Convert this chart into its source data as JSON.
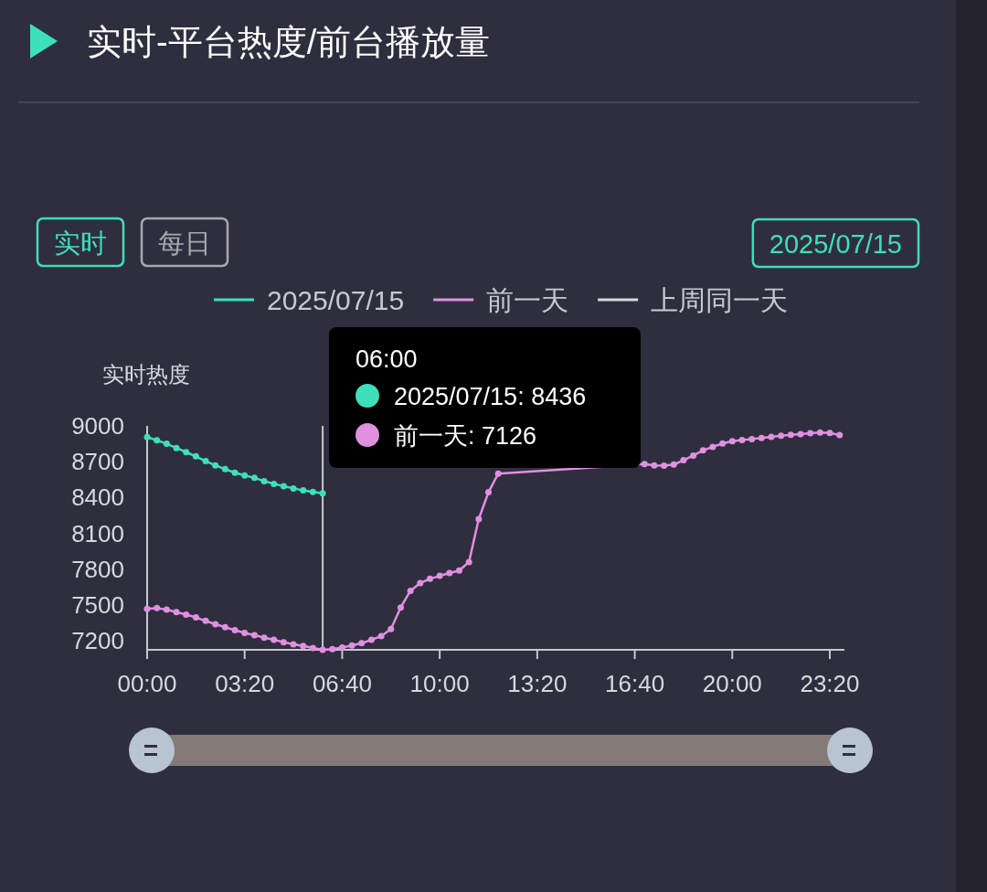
{
  "chart_data": {
    "type": "line",
    "title": "实时-平台热度/前台播放量",
    "ylabel": "实时热度",
    "xlim": [
      0,
      23.833
    ],
    "ylim": [
      7126,
      9000
    ],
    "xticks": [
      {
        "value": 0,
        "label": "00:00"
      },
      {
        "value": 3.333,
        "label": "03:20"
      },
      {
        "value": 6.667,
        "label": "06:40"
      },
      {
        "value": 10,
        "label": "10:00"
      },
      {
        "value": 13.333,
        "label": "13:20"
      },
      {
        "value": 16.667,
        "label": "16:40"
      },
      {
        "value": 20,
        "label": "20:00"
      },
      {
        "value": 23.333,
        "label": "23:20"
      }
    ],
    "yticks": [
      7200,
      7500,
      7800,
      8100,
      8400,
      8700,
      9000
    ],
    "grid": false,
    "legend": "top",
    "marker": "circle",
    "line_style": "solid",
    "ref_lines": [
      {
        "axis": "x",
        "value": 6,
        "color": "#c8c8d0"
      }
    ],
    "series": [
      {
        "name": "2025/07/15",
        "color": "#3de0b8",
        "x": [
          0,
          0.333,
          0.667,
          1,
          1.333,
          1.667,
          2,
          2.333,
          2.667,
          3,
          3.333,
          3.667,
          4,
          4.333,
          4.667,
          5,
          5.333,
          5.667,
          6
        ],
        "values": [
          8906,
          8880,
          8850,
          8815,
          8780,
          8745,
          8705,
          8670,
          8638,
          8608,
          8585,
          8565,
          8538,
          8515,
          8495,
          8477,
          8460,
          8448,
          8436
        ]
      },
      {
        "name": "前一天",
        "color": "#e090e0",
        "x": [
          0,
          0.333,
          0.667,
          1,
          1.333,
          1.667,
          2,
          2.333,
          2.667,
          3,
          3.333,
          3.667,
          4,
          4.333,
          4.667,
          5,
          5.333,
          5.667,
          6,
          6.333,
          6.667,
          7,
          7.333,
          7.667,
          8,
          8.333,
          8.667,
          9,
          9.333,
          9.667,
          10,
          10.333,
          10.667,
          11,
          11.333,
          11.667,
          12,
          17,
          17.333,
          17.667,
          18,
          18.333,
          18.667,
          19,
          19.333,
          19.667,
          20,
          20.333,
          20.667,
          21,
          21.333,
          21.667,
          22,
          22.333,
          22.667,
          23,
          23.333,
          23.667
        ],
        "values": [
          7468,
          7475,
          7462,
          7442,
          7420,
          7397,
          7368,
          7340,
          7315,
          7290,
          7268,
          7248,
          7228,
          7210,
          7190,
          7172,
          7158,
          7142,
          7126,
          7132,
          7145,
          7162,
          7181,
          7210,
          7240,
          7300,
          7480,
          7620,
          7685,
          7720,
          7745,
          7768,
          7790,
          7860,
          8220,
          8445,
          8600,
          8680,
          8670,
          8667,
          8676,
          8713,
          8752,
          8795,
          8825,
          8853,
          8872,
          8882,
          8890,
          8898,
          8908,
          8918,
          8925,
          8932,
          8938,
          8944,
          8940,
          8923
        ]
      },
      {
        "name": "上周同一天",
        "color": "#d8d8e0"
      }
    ],
    "annotations": [
      "06:00",
      "2025/07/15: 8436",
      "前一天: 7126",
      "实时",
      "每日",
      "2025/07/15"
    ]
  }
}
